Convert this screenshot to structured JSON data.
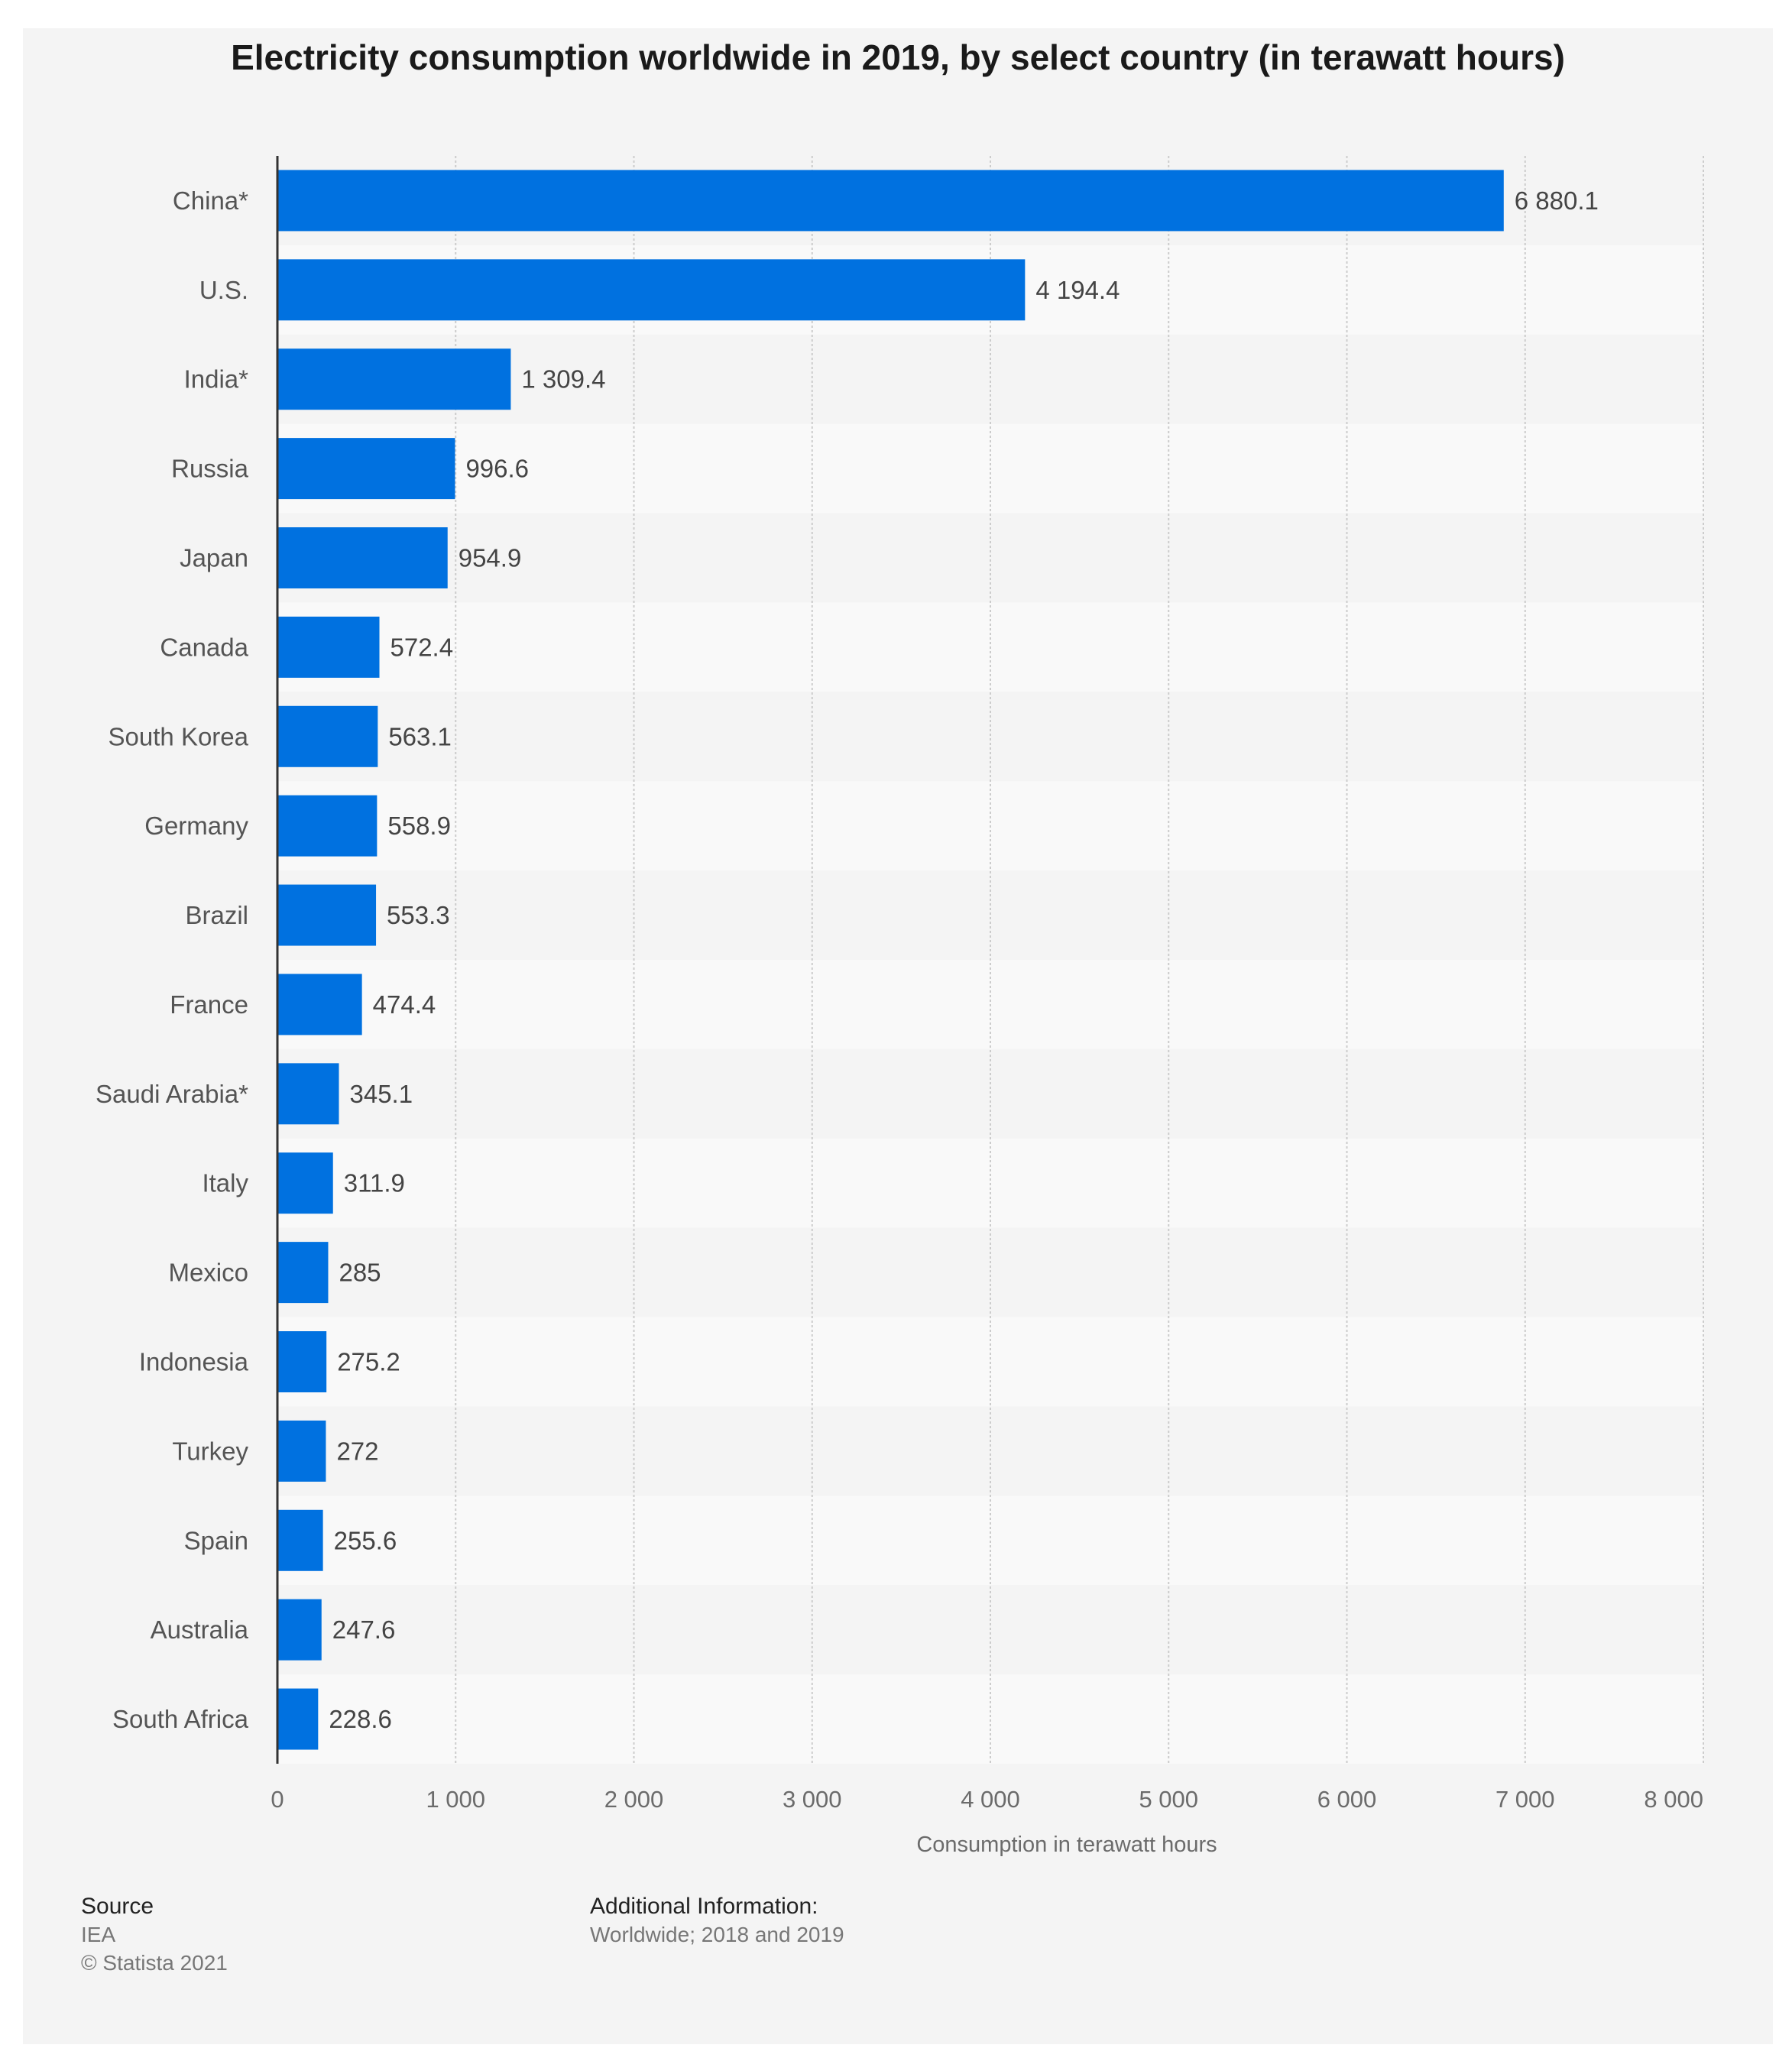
{
  "chart_data": {
    "type": "bar",
    "orientation": "horizontal",
    "title": "Electricity consumption worldwide in 2019, by select country (in terawatt hours)",
    "xlabel": "Consumption in terawatt hours",
    "ylabel": "",
    "categories": [
      "China*",
      "U.S.",
      "India*",
      "Russia",
      "Japan",
      "Canada",
      "South Korea",
      "Germany",
      "Brazil",
      "France",
      "Saudi Arabia*",
      "Italy",
      "Mexico",
      "Indonesia",
      "Turkey",
      "Spain",
      "Australia",
      "South Africa"
    ],
    "values": [
      6880.1,
      4194.4,
      1309.4,
      996.6,
      954.9,
      572.4,
      563.1,
      558.9,
      553.3,
      474.4,
      345.1,
      311.9,
      285,
      275.2,
      272,
      255.6,
      247.6,
      228.6
    ],
    "value_labels": [
      "6 880.1",
      "4 194.4",
      "1 309.4",
      "996.6",
      "954.9",
      "572.4",
      "563.1",
      "558.9",
      "553.3",
      "474.4",
      "345.1",
      "311.9",
      "285",
      "275.2",
      "272",
      "255.6",
      "247.6",
      "228.6"
    ],
    "xlim": [
      0,
      8000
    ],
    "xticks": [
      0,
      1000,
      2000,
      3000,
      4000,
      5000,
      6000,
      7000,
      8000
    ],
    "xtick_labels": [
      "0",
      "1 000",
      "2 000",
      "3 000",
      "4 000",
      "5 000",
      "6 000",
      "7 000",
      "8 000"
    ],
    "grid": true,
    "colors": {
      "bar": "#0071e0",
      "grid": "#cccccc",
      "band_even": "#f4f4f4",
      "band_odd": "#f9f9f9"
    }
  },
  "footer": {
    "source_heading": "Source",
    "source_lines": [
      "IEA",
      "© Statista 2021"
    ],
    "info_heading": "Additional Information:",
    "info_text": "Worldwide; 2018 and 2019"
  }
}
